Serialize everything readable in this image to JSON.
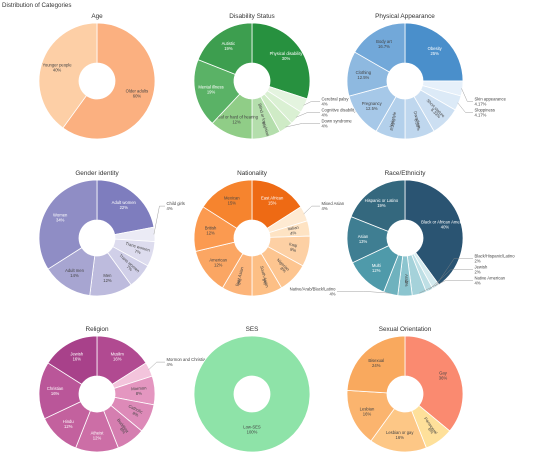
{
  "title": "Distribution of Categories",
  "chart_data": [
    {
      "type": "pie",
      "hole": true,
      "title": "Age",
      "labels": [
        "Older adults",
        "Younger people"
      ],
      "values": [
        60,
        40
      ],
      "percent_labels": [
        "60%",
        "40%"
      ],
      "colors": [
        "#FBB080",
        "#FDCFA6"
      ]
    },
    {
      "type": "pie",
      "hole": true,
      "title": "Disability Status",
      "labels": [
        "Physical disability",
        "Cerebral palsy",
        "Cognitive disability",
        "Down syndrome",
        "Blind or low vision",
        "Deaf or hard of hearing",
        "Mental illness",
        "Autistic"
      ],
      "values": [
        30,
        4,
        4,
        4,
        8,
        12,
        19,
        19
      ],
      "percent_labels": [
        "30%",
        "4%",
        "4%",
        "4%",
        "8%",
        "12%",
        "19%",
        "19%"
      ],
      "colors": [
        "#27913F",
        "#E4F4DF",
        "#DAF0D3",
        "#CFEBC6",
        "#B4DEAC",
        "#90CD87",
        "#5AB266",
        "#3D9E4F"
      ]
    },
    {
      "type": "pie",
      "hole": true,
      "title": "Physical Appearance",
      "labels": [
        "Obesity",
        "Skin appearance",
        "Sloppiness",
        "Short stature",
        "Dwarfism",
        "Hairstyle",
        "Pregnancy",
        "Clothing",
        "Body art"
      ],
      "values": [
        25,
        4.17,
        4.17,
        8.33,
        8.33,
        8.33,
        12.5,
        12.5,
        16.7
      ],
      "percent_labels": [
        "25%",
        "4.17%",
        "4.17%",
        "8.33%",
        "8.33%",
        "8.33%",
        "12.5%",
        "12.5%",
        "16.7%"
      ],
      "colors": [
        "#4A8FCB",
        "#E6F0FA",
        "#DCEAF7",
        "#CCDFF2",
        "#BFD7EE",
        "#B3D0EB",
        "#A6C8E8",
        "#8EB9E0",
        "#72A8D9"
      ]
    },
    {
      "type": "pie",
      "hole": true,
      "title": "Gender identity",
      "labels": [
        "Adult women",
        "Child girls",
        "Trans women",
        "Trans women",
        "Men",
        "Adult men",
        "Women"
      ],
      "values": [
        22,
        4,
        7,
        7,
        12,
        14,
        34
      ],
      "percent_labels": [
        "22%",
        "4%",
        "7%",
        "7%",
        "12%",
        "14%",
        "34%"
      ],
      "colors": [
        "#7E7DBE",
        "#EBEBF5",
        "#DDDCEE",
        "#D0CFE8",
        "#BDBBDD",
        "#A7A5D1",
        "#8F8DC5"
      ]
    },
    {
      "type": "pie",
      "hole": true,
      "title": "Nationality",
      "labels": [
        "East African",
        "Mixed Asian",
        "Italian",
        "Iraqi",
        "Nigerian",
        "South Asian",
        "East Asian",
        "American",
        "British",
        "Mexican"
      ],
      "values": [
        15,
        4,
        4,
        8,
        8,
        8,
        8,
        12,
        12,
        15
      ],
      "percent_labels": [
        "15%",
        "4%",
        "4%",
        "8%",
        "8%",
        "8%",
        "8%",
        "12%",
        "12%",
        "15%"
      ],
      "colors": [
        "#EE6A14",
        "#FEEAD2",
        "#FEE3C3",
        "#FDD0A4",
        "#FDC590",
        "#FDBF85",
        "#FCB479",
        "#FBA663",
        "#FB9A50",
        "#F6842E"
      ]
    },
    {
      "type": "pie",
      "hole": true,
      "title": "Race/Ethnicity",
      "labels": [
        "Black or African American",
        "Black/Hispanic/Latino",
        "Jewish",
        "Native American",
        "Arab",
        "Native/Arab/Black/Latino",
        "Multi",
        "Asian",
        "Hispanic or Latino"
      ],
      "values": [
        40,
        2,
        2,
        4,
        4,
        4,
        12,
        13,
        19
      ],
      "percent_labels": [
        "40%",
        "2%",
        "2%",
        "4%",
        "4%",
        "4%",
        "12%",
        "13%",
        "19%"
      ],
      "colors": [
        "#2A5472",
        "#D4EAEE",
        "#BEDFE5",
        "#A5D2DA",
        "#8CC5CF",
        "#6FB2BE",
        "#4F9AAA",
        "#3F7E92",
        "#34687E"
      ]
    },
    {
      "type": "pie",
      "hole": true,
      "title": "Religion",
      "labels": [
        "Muslim",
        "Mormon and Christian",
        "Mormon",
        "Catholic",
        "Buddhist",
        "Atheist",
        "Hindu",
        "Christian",
        "Jewish"
      ],
      "values": [
        16,
        4,
        8,
        8,
        8,
        12,
        12,
        16,
        16
      ],
      "percent_labels": [
        "16%",
        "4%",
        "8%",
        "8%",
        "8%",
        "12%",
        "12%",
        "16%",
        "16%"
      ],
      "colors": [
        "#B14A91",
        "#F3C4DC",
        "#E496C0",
        "#DD8AB8",
        "#D57EB0",
        "#CC6EA6",
        "#C3619E",
        "#BA5699",
        "#A8418A"
      ]
    },
    {
      "type": "pie",
      "hole": true,
      "title": "SES",
      "labels": [
        "Low-SES"
      ],
      "values": [
        100
      ],
      "percent_labels": [
        "100%"
      ],
      "colors": [
        "#8EE3A8"
      ]
    },
    {
      "type": "pie",
      "hole": true,
      "title": "Sexual Orientation",
      "labels": [
        "Gay",
        "Pansexual",
        "Lesbian or gay",
        "Lesbian",
        "Bisexual"
      ],
      "values": [
        36,
        8,
        16,
        16,
        24
      ],
      "percent_labels": [
        "36%",
        "8%",
        "16%",
        "16%",
        "24%"
      ],
      "colors": [
        "#FA8A70",
        "#FEE09A",
        "#FDC786",
        "#FBB46E",
        "#F9A95E"
      ]
    }
  ]
}
